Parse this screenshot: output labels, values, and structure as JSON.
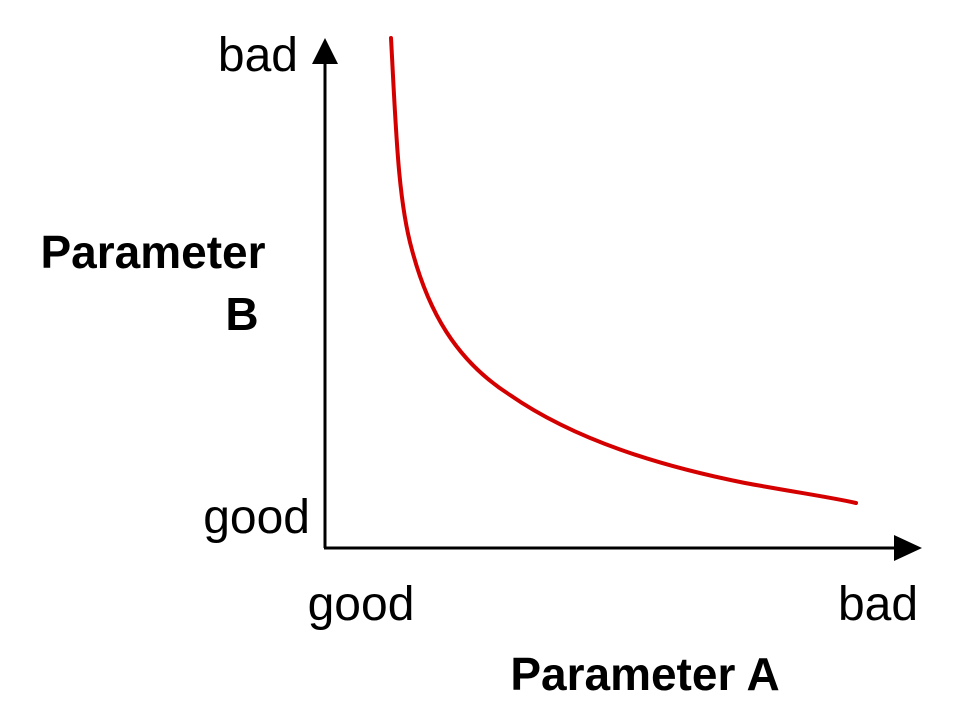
{
  "diagram": {
    "x_axis": {
      "title": "Parameter A",
      "low_label": "good",
      "high_label": "bad"
    },
    "y_axis": {
      "title_line1": "Parameter",
      "title_line2": "B",
      "low_label": "good",
      "high_label": "bad"
    },
    "curve": {
      "shape": "hyperbolic trade-off",
      "color": "#d40000"
    },
    "axis_color": "#000000"
  }
}
